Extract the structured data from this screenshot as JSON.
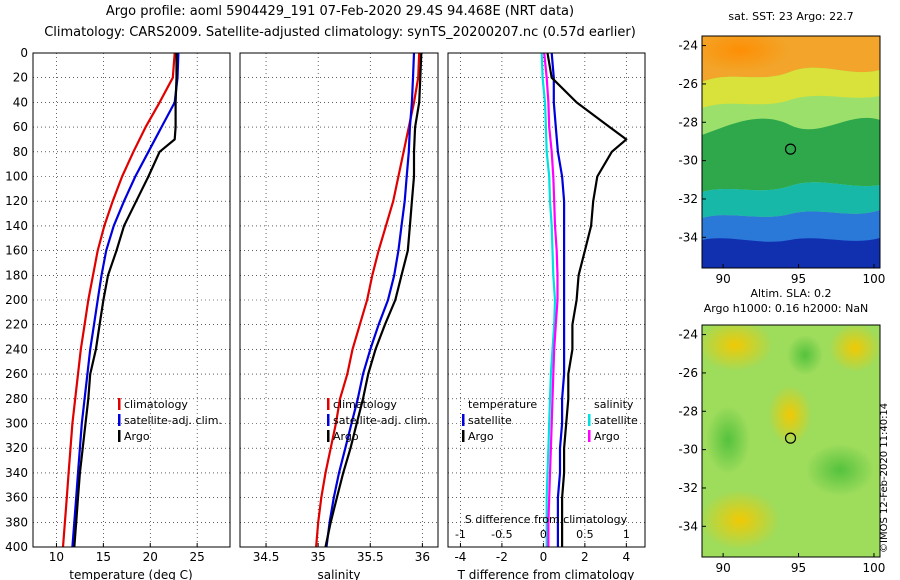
{
  "header": {
    "title_line1": "Argo profile: aoml 5904429_191 07-Feb-2020 29.4S 94.468E (NRT data)",
    "title_line2": "Climatology: CARS2009. Satellite-adjusted climatology: synTS_20200207.nc (0.57d earlier)"
  },
  "colors": {
    "climatology": "#e00000",
    "satellite": "#0000dd",
    "argo": "#000000",
    "salinity_clim": "#ff00ff",
    "salinity_sat": "#00e0e0"
  },
  "maps": {
    "sst_title": "sat. SST: 23 Argo: 22.7",
    "alt_title_line1": "Altim. SLA: 0.2",
    "alt_title_line2": "Argo h1000: 0.16 h2000: NaN",
    "stamp": "©IMOS 12-Feb-2020 11:40:14",
    "float_position": {
      "lon": 94.468,
      "lat": -29.4
    },
    "sst_map": {
      "xlim": [
        88.6,
        100.4
      ],
      "ylim": [
        -35.6,
        -23.5
      ],
      "xticks": [
        "90",
        "95",
        "100"
      ],
      "yticks": [
        "-24",
        "-26",
        "-28",
        "-30",
        "-32",
        "-34"
      ]
    },
    "alt_map": {
      "xlim": [
        88.6,
        100.4
      ],
      "ylim": [
        -35.6,
        -23.5
      ],
      "xticks": [
        "90",
        "95",
        "100"
      ],
      "yticks": [
        "-24",
        "-26",
        "-28",
        "-30",
        "-32",
        "-34"
      ]
    }
  },
  "chart_data": [
    {
      "type": "line",
      "id": "temperature",
      "xlabel": "temperature (deg C)",
      "ylabel": "",
      "xlim": [
        7.5,
        28.5
      ],
      "ylim": [
        400,
        0
      ],
      "xticks": [
        "10",
        "15",
        "20",
        "25"
      ],
      "yticks": [
        "0",
        "20",
        "40",
        "60",
        "80",
        "100",
        "120",
        "140",
        "160",
        "180",
        "200",
        "220",
        "240",
        "260",
        "280",
        "300",
        "320",
        "340",
        "360",
        "380",
        "400"
      ],
      "legend": [
        "climatology",
        "satellite-adj. clim.",
        "Argo"
      ],
      "series": [
        {
          "name": "climatology",
          "color": "#e00000",
          "points": [
            [
              22.6,
              0
            ],
            [
              22.4,
              20
            ],
            [
              21.0,
              40
            ],
            [
              19.5,
              60
            ],
            [
              18.2,
              80
            ],
            [
              17.0,
              100
            ],
            [
              16.0,
              120
            ],
            [
              15.1,
              140
            ],
            [
              14.4,
              160
            ],
            [
              13.9,
              180
            ],
            [
              13.4,
              200
            ],
            [
              13.0,
              220
            ],
            [
              12.6,
              240
            ],
            [
              12.3,
              260
            ],
            [
              12.0,
              280
            ],
            [
              11.7,
              300
            ],
            [
              11.5,
              320
            ],
            [
              11.3,
              340
            ],
            [
              11.1,
              360
            ],
            [
              10.9,
              380
            ],
            [
              10.7,
              400
            ]
          ]
        },
        {
          "name": "satellite-adj. clim.",
          "color": "#0000dd",
          "points": [
            [
              23.0,
              0
            ],
            [
              22.9,
              20
            ],
            [
              22.6,
              40
            ],
            [
              21.2,
              60
            ],
            [
              19.8,
              80
            ],
            [
              18.4,
              100
            ],
            [
              17.2,
              120
            ],
            [
              16.1,
              140
            ],
            [
              15.3,
              160
            ],
            [
              14.8,
              180
            ],
            [
              14.4,
              200
            ],
            [
              14.0,
              220
            ],
            [
              13.6,
              240
            ],
            [
              13.3,
              260
            ],
            [
              13.0,
              280
            ],
            [
              12.7,
              300
            ],
            [
              12.5,
              320
            ],
            [
              12.3,
              340
            ],
            [
              12.1,
              360
            ],
            [
              11.9,
              380
            ],
            [
              11.7,
              400
            ]
          ]
        },
        {
          "name": "Argo",
          "color": "#000000",
          "points": [
            [
              22.8,
              0
            ],
            [
              22.8,
              20
            ],
            [
              22.7,
              40
            ],
            [
              22.7,
              60
            ],
            [
              22.6,
              70
            ],
            [
              21.0,
              80
            ],
            [
              19.8,
              100
            ],
            [
              18.5,
              120
            ],
            [
              17.2,
              140
            ],
            [
              16.4,
              160
            ],
            [
              15.5,
              180
            ],
            [
              15.0,
              200
            ],
            [
              14.6,
              220
            ],
            [
              14.2,
              240
            ],
            [
              13.6,
              260
            ],
            [
              13.4,
              280
            ],
            [
              13.1,
              300
            ],
            [
              12.8,
              320
            ],
            [
              12.5,
              340
            ],
            [
              12.3,
              360
            ],
            [
              12.1,
              380
            ],
            [
              11.9,
              400
            ]
          ]
        }
      ]
    },
    {
      "type": "line",
      "id": "salinity",
      "xlabel": "salinity",
      "ylabel": "",
      "xlim": [
        34.25,
        36.15
      ],
      "ylim": [
        400,
        0
      ],
      "xticks": [
        "34.5",
        "35",
        "35.5",
        "36"
      ],
      "legend": [
        "climatology",
        "satellite-adj. clim.",
        "Argo"
      ],
      "series": [
        {
          "name": "climatology",
          "color": "#e00000",
          "points": [
            [
              35.97,
              0
            ],
            [
              35.96,
              20
            ],
            [
              35.92,
              40
            ],
            [
              35.87,
              60
            ],
            [
              35.82,
              80
            ],
            [
              35.77,
              100
            ],
            [
              35.72,
              120
            ],
            [
              35.65,
              140
            ],
            [
              35.58,
              160
            ],
            [
              35.52,
              180
            ],
            [
              35.47,
              200
            ],
            [
              35.4,
              220
            ],
            [
              35.33,
              240
            ],
            [
              35.28,
              260
            ],
            [
              35.21,
              280
            ],
            [
              35.17,
              300
            ],
            [
              35.12,
              320
            ],
            [
              35.07,
              340
            ],
            [
              35.03,
              360
            ],
            [
              35.0,
              380
            ],
            [
              34.98,
              400
            ]
          ]
        },
        {
          "name": "satellite-adj. clim.",
          "color": "#0000dd",
          "points": [
            [
              35.92,
              0
            ],
            [
              35.91,
              20
            ],
            [
              35.9,
              40
            ],
            [
              35.88,
              60
            ],
            [
              35.87,
              80
            ],
            [
              35.85,
              100
            ],
            [
              35.83,
              120
            ],
            [
              35.8,
              140
            ],
            [
              35.77,
              160
            ],
            [
              35.73,
              180
            ],
            [
              35.67,
              200
            ],
            [
              35.58,
              220
            ],
            [
              35.5,
              240
            ],
            [
              35.43,
              260
            ],
            [
              35.38,
              280
            ],
            [
              35.32,
              300
            ],
            [
              35.26,
              320
            ],
            [
              35.2,
              340
            ],
            [
              35.15,
              360
            ],
            [
              35.11,
              380
            ],
            [
              35.08,
              400
            ]
          ]
        },
        {
          "name": "Argo",
          "color": "#000000",
          "points": [
            [
              35.99,
              0
            ],
            [
              35.98,
              20
            ],
            [
              35.97,
              40
            ],
            [
              35.93,
              60
            ],
            [
              35.92,
              80
            ],
            [
              35.92,
              100
            ],
            [
              35.9,
              120
            ],
            [
              35.88,
              140
            ],
            [
              35.86,
              160
            ],
            [
              35.8,
              180
            ],
            [
              35.74,
              200
            ],
            [
              35.64,
              220
            ],
            [
              35.55,
              240
            ],
            [
              35.48,
              260
            ],
            [
              35.43,
              280
            ],
            [
              35.37,
              300
            ],
            [
              35.31,
              320
            ],
            [
              35.24,
              340
            ],
            [
              35.18,
              360
            ],
            [
              35.12,
              380
            ],
            [
              35.07,
              400
            ]
          ]
        }
      ]
    },
    {
      "type": "line",
      "id": "difference",
      "xlabel": "T difference from climatology",
      "xlabel_top": "S difference from climatology",
      "ylabel": "",
      "xlim": [
        -4.6,
        4.9
      ],
      "ylim": [
        400,
        0
      ],
      "xticks": [
        "-4",
        "-2",
        "0",
        "2",
        "4"
      ],
      "xticks_top": [
        "-1",
        "-0.5",
        "0",
        "0.5",
        "1"
      ],
      "legend_groups": {
        "temperature": [
          "satellite",
          "Argo"
        ],
        "salinity": [
          "satellite",
          "Argo"
        ]
      },
      "series": [
        {
          "name": "temperature satellite",
          "color": "#0000dd",
          "points": [
            [
              0.4,
              0
            ],
            [
              0.5,
              20
            ],
            [
              0.5,
              40
            ],
            [
              0.6,
              60
            ],
            [
              0.7,
              80
            ],
            [
              0.9,
              100
            ],
            [
              1.0,
              120
            ],
            [
              1.0,
              140
            ],
            [
              1.0,
              160
            ],
            [
              1.0,
              180
            ],
            [
              1.0,
              200
            ],
            [
              1.0,
              220
            ],
            [
              1.0,
              240
            ],
            [
              1.0,
              260
            ],
            [
              0.9,
              280
            ],
            [
              0.9,
              300
            ],
            [
              0.8,
              320
            ],
            [
              0.8,
              340
            ],
            [
              0.7,
              360
            ],
            [
              0.7,
              380
            ],
            [
              0.7,
              400
            ]
          ]
        },
        {
          "name": "temperature Argo",
          "color": "#000000",
          "points": [
            [
              0.2,
              0
            ],
            [
              0.4,
              20
            ],
            [
              1.6,
              40
            ],
            [
              3.2,
              60
            ],
            [
              4.0,
              70
            ],
            [
              3.3,
              80
            ],
            [
              2.6,
              100
            ],
            [
              2.4,
              120
            ],
            [
              2.3,
              140
            ],
            [
              2.0,
              160
            ],
            [
              1.7,
              180
            ],
            [
              1.6,
              200
            ],
            [
              1.4,
              220
            ],
            [
              1.4,
              240
            ],
            [
              1.2,
              260
            ],
            [
              1.2,
              280
            ],
            [
              1.1,
              300
            ],
            [
              1.0,
              320
            ],
            [
              1.0,
              340
            ],
            [
              0.9,
              360
            ],
            [
              0.9,
              380
            ],
            [
              0.9,
              400
            ]
          ]
        },
        {
          "name": "salinity satellite",
          "color": "#00e0e0",
          "points": [
            [
              -0.02,
              0
            ],
            [
              -0.01,
              20
            ],
            [
              0.02,
              40
            ],
            [
              0.03,
              60
            ],
            [
              0.04,
              80
            ],
            [
              0.07,
              100
            ],
            [
              0.08,
              120
            ],
            [
              0.1,
              140
            ],
            [
              0.11,
              160
            ],
            [
              0.12,
              180
            ],
            [
              0.14,
              200
            ],
            [
              0.13,
              220
            ],
            [
              0.11,
              240
            ],
            [
              0.09,
              260
            ],
            [
              0.08,
              280
            ],
            [
              0.07,
              300
            ],
            [
              0.06,
              320
            ],
            [
              0.05,
              340
            ],
            [
              0.04,
              360
            ],
            [
              0.04,
              380
            ],
            [
              0.04,
              400
            ]
          ]
        },
        {
          "name": "salinity Argo",
          "color": "#ff00ff",
          "points": [
            [
              0.01,
              0
            ],
            [
              0.04,
              20
            ],
            [
              0.06,
              40
            ],
            [
              0.07,
              60
            ],
            [
              0.1,
              80
            ],
            [
              0.12,
              100
            ],
            [
              0.13,
              120
            ],
            [
              0.14,
              140
            ],
            [
              0.16,
              160
            ],
            [
              0.17,
              180
            ],
            [
              0.17,
              200
            ],
            [
              0.15,
              220
            ],
            [
              0.13,
              240
            ],
            [
              0.12,
              260
            ],
            [
              0.11,
              280
            ],
            [
              0.1,
              300
            ],
            [
              0.09,
              320
            ],
            [
              0.08,
              340
            ],
            [
              0.07,
              360
            ],
            [
              0.06,
              380
            ],
            [
              0.06,
              400
            ]
          ]
        }
      ]
    }
  ]
}
